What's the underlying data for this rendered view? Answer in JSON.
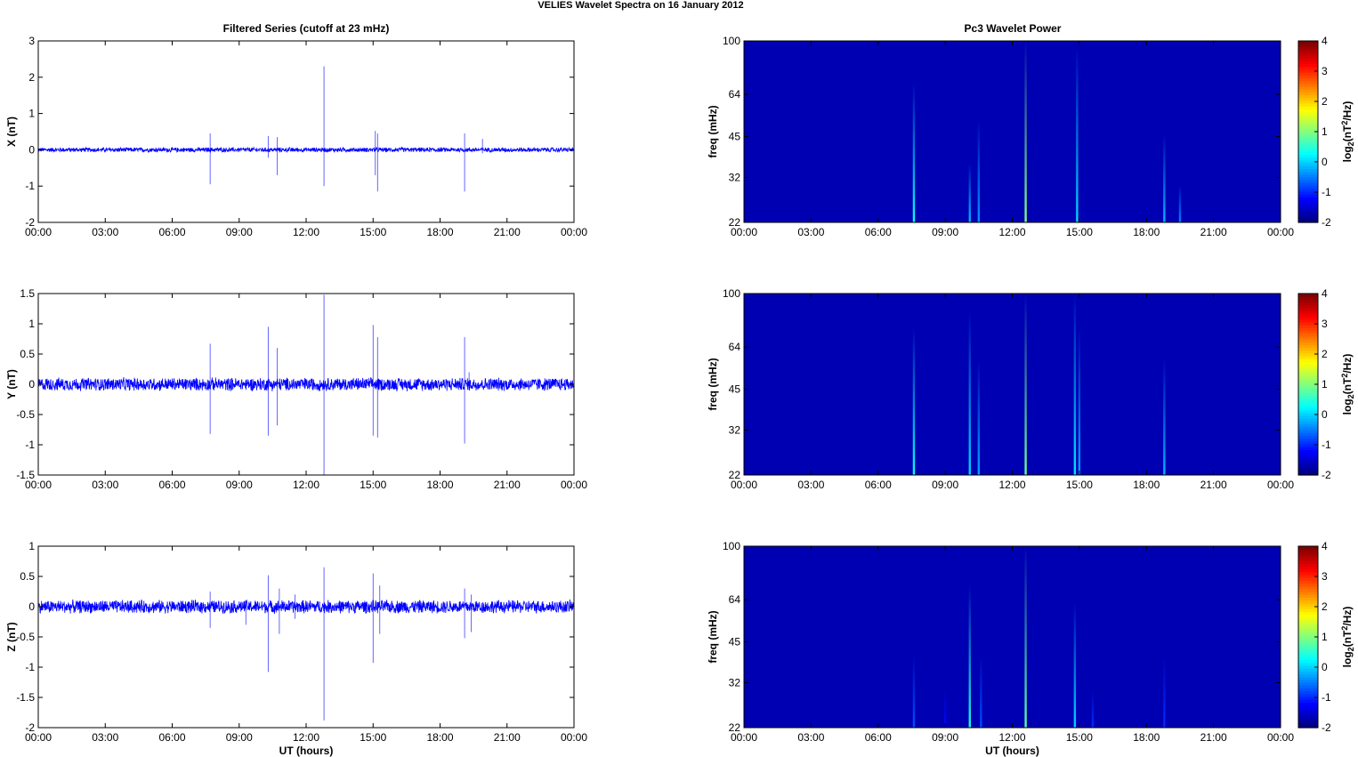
{
  "figure_title": "VELIES Wavelet Spectra on 16 January   2012",
  "left_title": "Filtered Series (cutoff at 23 mHz)",
  "right_title": "Pc3 Wavelet Power",
  "xlabel": "UT (hours)",
  "x_ticks": [
    "00:00",
    "03:00",
    "06:00",
    "09:00",
    "12:00",
    "15:00",
    "18:00",
    "21:00",
    "00:00"
  ],
  "colors": {
    "trace": "#0000ff",
    "background": "#00008f",
    "axis": "#000000"
  },
  "chart_data": [
    {
      "type": "line",
      "title": "Filtered Series (cutoff at 23 mHz)",
      "ylabel": "X (nT)",
      "xlim": [
        0,
        24
      ],
      "ylim": [
        -2,
        3
      ],
      "y_ticks": [
        "-2",
        "-1",
        "0",
        "1",
        "2",
        "3"
      ],
      "noise_amplitude": 0.07,
      "spikes": [
        [
          7.7,
          0.45,
          -0.95
        ],
        [
          10.3,
          0.38,
          -0.22
        ],
        [
          10.7,
          0.35,
          -0.7
        ],
        [
          12.8,
          2.3,
          -1.0
        ],
        [
          15.1,
          0.52,
          -0.7
        ],
        [
          15.2,
          0.45,
          -1.15
        ],
        [
          19.1,
          0.45,
          -1.15
        ],
        [
          19.9,
          0.3,
          -0.1
        ]
      ]
    },
    {
      "type": "line",
      "ylabel": "Y (nT)",
      "xlim": [
        0,
        24
      ],
      "ylim": [
        -1.5,
        1.5
      ],
      "y_ticks": [
        "-1.5",
        "-1",
        "-0.5",
        "0",
        "0.5",
        "1",
        "1.5"
      ],
      "noise_amplitude": 0.12,
      "spikes": [
        [
          7.7,
          0.67,
          -0.82
        ],
        [
          10.3,
          0.95,
          -0.85
        ],
        [
          10.7,
          0.6,
          -0.68
        ],
        [
          12.8,
          1.48,
          -1.5
        ],
        [
          15.0,
          0.98,
          -0.85
        ],
        [
          15.2,
          0.78,
          -0.88
        ],
        [
          19.1,
          0.78,
          -0.98
        ],
        [
          19.3,
          0.2,
          -0.1
        ]
      ]
    },
    {
      "type": "line",
      "xlabel": "UT (hours)",
      "ylabel": "Z (nT)",
      "xlim": [
        0,
        24
      ],
      "ylim": [
        -2,
        1
      ],
      "y_ticks": [
        "-2",
        "-1.5",
        "-1",
        "-0.5",
        "0",
        "0.5",
        "1"
      ],
      "noise_amplitude": 0.12,
      "spikes": [
        [
          7.7,
          0.25,
          -0.35
        ],
        [
          9.3,
          0.1,
          -0.3
        ],
        [
          10.3,
          0.52,
          -1.08
        ],
        [
          10.8,
          0.3,
          -0.45
        ],
        [
          11.5,
          0.2,
          -0.2
        ],
        [
          12.8,
          0.65,
          -1.88
        ],
        [
          15.0,
          0.55,
          -0.93
        ],
        [
          15.3,
          0.35,
          -0.45
        ],
        [
          19.1,
          0.3,
          -0.52
        ],
        [
          19.4,
          0.2,
          -0.42
        ]
      ]
    },
    {
      "type": "heatmap",
      "title": "Pc3 Wavelet Power",
      "ylabel": "freq (mHz)",
      "colorbar_label": "log2(nT^2/Hz)",
      "clim": [
        -2,
        4
      ],
      "xlim": [
        0,
        24
      ],
      "ylim": [
        22,
        100
      ],
      "y_scale": "log",
      "y_ticks": [
        22,
        32,
        45,
        64,
        100
      ],
      "colorbar_ticks": [
        "-2",
        "-1",
        "0",
        "1",
        "2",
        "3",
        "4"
      ],
      "background_level": -1.7,
      "bursts": [
        [
          7.6,
          70,
          0.3
        ],
        [
          10.1,
          36,
          -0.2
        ],
        [
          10.5,
          52,
          -0.4
        ],
        [
          12.6,
          100,
          1.0
        ],
        [
          14.9,
          95,
          0.0
        ],
        [
          18.8,
          46,
          -0.2
        ],
        [
          19.5,
          30,
          -0.5
        ]
      ]
    },
    {
      "type": "heatmap",
      "ylabel": "freq (mHz)",
      "colorbar_label": "log2(nT^2/Hz)",
      "clim": [
        -2,
        4
      ],
      "xlim": [
        0,
        24
      ],
      "ylim": [
        22,
        100
      ],
      "y_scale": "log",
      "y_ticks": [
        22,
        32,
        45,
        64,
        100
      ],
      "colorbar_ticks": [
        "-2",
        "-1",
        "0",
        "1",
        "2",
        "3",
        "4"
      ],
      "background_level": -1.7,
      "bursts": [
        [
          7.6,
          75,
          0.3
        ],
        [
          10.1,
          85,
          0.0
        ],
        [
          10.5,
          57,
          -0.3
        ],
        [
          12.6,
          100,
          0.9
        ],
        [
          14.8,
          100,
          0.1
        ],
        [
          15.0,
          75,
          -0.3
        ],
        [
          18.8,
          58,
          -0.2
        ]
      ]
    },
    {
      "type": "heatmap",
      "xlabel": "UT (hours)",
      "ylabel": "freq (mHz)",
      "colorbar_label": "log2(nT^2/Hz)",
      "clim": [
        -2,
        4
      ],
      "xlim": [
        0,
        24
      ],
      "ylim": [
        22,
        100
      ],
      "y_scale": "log",
      "y_ticks": [
        22,
        32,
        45,
        64,
        100
      ],
      "colorbar_ticks": [
        "-2",
        "-1",
        "0",
        "1",
        "2",
        "3",
        "4"
      ],
      "background_level": -1.7,
      "bursts": [
        [
          7.6,
          40,
          -0.8
        ],
        [
          9.0,
          30,
          -1.2
        ],
        [
          10.1,
          72,
          0.4
        ],
        [
          10.6,
          40,
          -0.8
        ],
        [
          12.6,
          100,
          0.8
        ],
        [
          14.8,
          62,
          0.0
        ],
        [
          15.6,
          30,
          -1.0
        ],
        [
          18.8,
          40,
          -1.0
        ]
      ]
    }
  ]
}
